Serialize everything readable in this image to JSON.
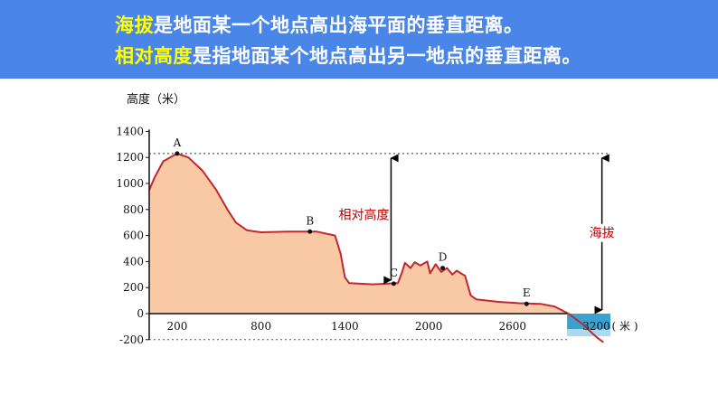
{
  "banner": {
    "line1_highlight": "海拔",
    "line1_rest": "是地面某一个地点高出海平面的垂直距离。",
    "line2_highlight": "相对高度",
    "line2_rest": "是指地面某个地点高出另一地点的垂直距离。"
  },
  "chart_data": {
    "type": "area",
    "ylabel": "高度（米）",
    "xunit": "( 米 )",
    "ylim": [
      -200,
      1400
    ],
    "xlim": [
      0,
      3300
    ],
    "y_ticks": [
      "1400",
      "1200",
      "1000",
      "800",
      "600",
      "400",
      "200",
      "0",
      "-200"
    ],
    "x_ticks": [
      "200",
      "800",
      "1400",
      "2000",
      "2600",
      "3200"
    ],
    "x_tick_values": [
      200,
      800,
      1400,
      2000,
      2600,
      3200
    ],
    "y_tick_values": [
      1400,
      1200,
      1000,
      800,
      600,
      400,
      200,
      0,
      -200
    ],
    "points": [
      {
        "label": "A",
        "x": 200,
        "y": 1230
      },
      {
        "label": "B",
        "x": 1150,
        "y": 630
      },
      {
        "label": "C",
        "x": 1750,
        "y": 230
      },
      {
        "label": "D",
        "x": 2100,
        "y": 350
      },
      {
        "label": "E",
        "x": 2700,
        "y": 75
      }
    ],
    "profile": [
      [
        0,
        950
      ],
      [
        40,
        1050
      ],
      [
        100,
        1170
      ],
      [
        200,
        1230
      ],
      [
        280,
        1200
      ],
      [
        380,
        1100
      ],
      [
        480,
        950
      ],
      [
        560,
        800
      ],
      [
        620,
        700
      ],
      [
        700,
        640
      ],
      [
        800,
        625
      ],
      [
        1000,
        630
      ],
      [
        1200,
        630
      ],
      [
        1330,
        600
      ],
      [
        1370,
        460
      ],
      [
        1400,
        280
      ],
      [
        1430,
        235
      ],
      [
        1600,
        225
      ],
      [
        1780,
        235
      ],
      [
        1810,
        320
      ],
      [
        1830,
        390
      ],
      [
        1870,
        350
      ],
      [
        1900,
        395
      ],
      [
        1940,
        370
      ],
      [
        1990,
        400
      ],
      [
        2010,
        310
      ],
      [
        2050,
        380
      ],
      [
        2090,
        320
      ],
      [
        2130,
        350
      ],
      [
        2170,
        300
      ],
      [
        2200,
        330
      ],
      [
        2260,
        290
      ],
      [
        2300,
        140
      ],
      [
        2340,
        110
      ],
      [
        2500,
        90
      ],
      [
        2650,
        80
      ],
      [
        2800,
        75
      ],
      [
        2900,
        55
      ],
      [
        3000,
        0
      ]
    ],
    "sea_floor": [
      [
        3000,
        0
      ],
      [
        3100,
        -80
      ],
      [
        3200,
        -180
      ],
      [
        3250,
        -220
      ]
    ],
    "dotted_level": 1230,
    "relative_height_label": "相对高度",
    "altitude_label": "海拔",
    "colors": {
      "land": "#f9c9a5",
      "outline": "#c0282d",
      "sea": "#3aa2d2",
      "arrow": "#000000"
    }
  }
}
